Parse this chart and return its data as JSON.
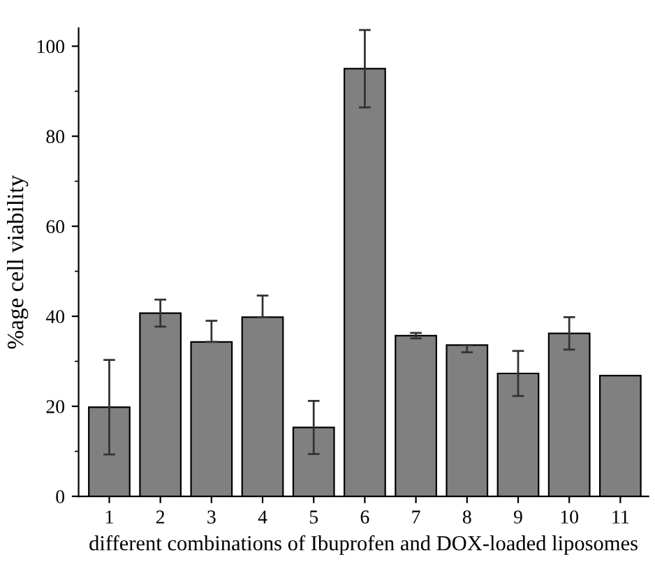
{
  "chart_data": {
    "type": "bar",
    "xlabel": "different combinations of Ibuprofen and DOX-loaded liposomes",
    "ylabel": "%age cell viability",
    "categories": [
      "1",
      "2",
      "3",
      "4",
      "5",
      "6",
      "7",
      "8",
      "9",
      "10",
      "11"
    ],
    "values": [
      19.8,
      40.7,
      34.3,
      39.8,
      15.3,
      95.0,
      35.7,
      33.6,
      27.3,
      36.2,
      26.8
    ],
    "errors": [
      10.5,
      3.0,
      [
        34.3,
        39.0
      ],
      [
        39.8,
        44.6
      ],
      5.9,
      8.6,
      0.6,
      [
        32.0,
        33.6
      ],
      5.0,
      3.6,
      null
    ],
    "color": "#808080",
    "ylim": [
      0,
      104
    ],
    "yticks": [
      0,
      20,
      40,
      60,
      80,
      100
    ],
    "grid": false,
    "legend": false
  }
}
